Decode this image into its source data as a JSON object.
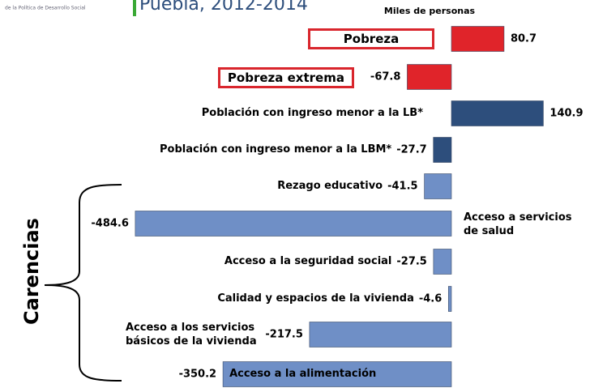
{
  "chart_data": {
    "type": "bar",
    "orientation": "horizontal",
    "title": "Puebla, 2012-2014",
    "logo_text": "de la Política de Desarrollo Social",
    "unit_label": "Miles de personas",
    "group_label": "Carencias",
    "categories": [
      "Pobreza",
      "Pobreza extrema",
      "Población con ingreso menor a la LB*",
      "Población con ingreso menor a la LBM*",
      "Rezago educativo",
      "Acceso a servicios de salud",
      "Acceso a la seguridad social",
      "Calidad y espacios de la vivienda",
      "Acceso a los servicios básicos de la vivienda",
      "Acceso a la alimentación"
    ],
    "values": [
      80.7,
      -67.8,
      140.9,
      -27.7,
      -41.5,
      -484.6,
      -27.5,
      -4.6,
      -217.5,
      -350.2
    ],
    "colors": [
      "#e0242a",
      "#e0242a",
      "#2d4e7c",
      "#2d4e7c",
      "#6f8fc6",
      "#6f8fc6",
      "#6f8fc6",
      "#6f8fc6",
      "#6f8fc6",
      "#6f8fc6"
    ]
  }
}
